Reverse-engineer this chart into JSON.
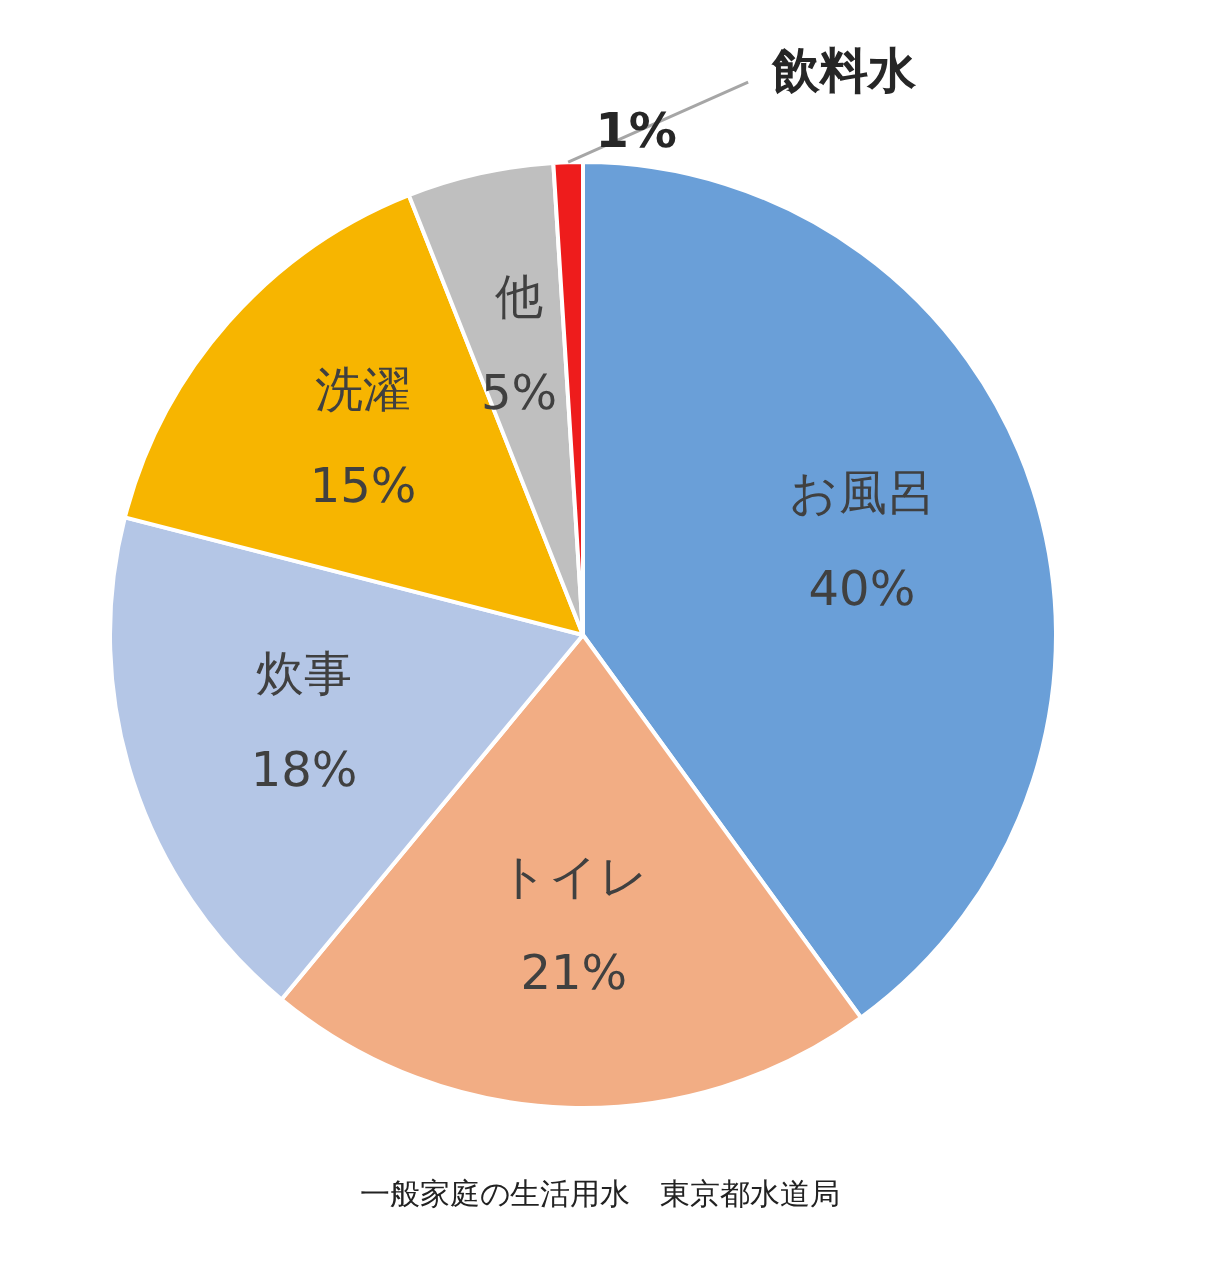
{
  "chart_data": {
    "type": "pie",
    "categories": [
      "お風呂",
      "トイレ",
      "炊事",
      "洗濯",
      "他",
      "飲料水"
    ],
    "values": [
      40,
      21,
      18,
      15,
      5,
      1
    ],
    "colors": [
      "#6a9fd8",
      "#f2ad84",
      "#b4c6e6",
      "#f7b500",
      "#bfbfbf",
      "#ee1c1c"
    ],
    "value_labels": [
      "40%",
      "21%",
      "18%",
      "15%",
      "5%",
      "1%"
    ],
    "legend": false,
    "annotations": [
      "一般家庭の生活用水　東京都水道局"
    ]
  }
}
